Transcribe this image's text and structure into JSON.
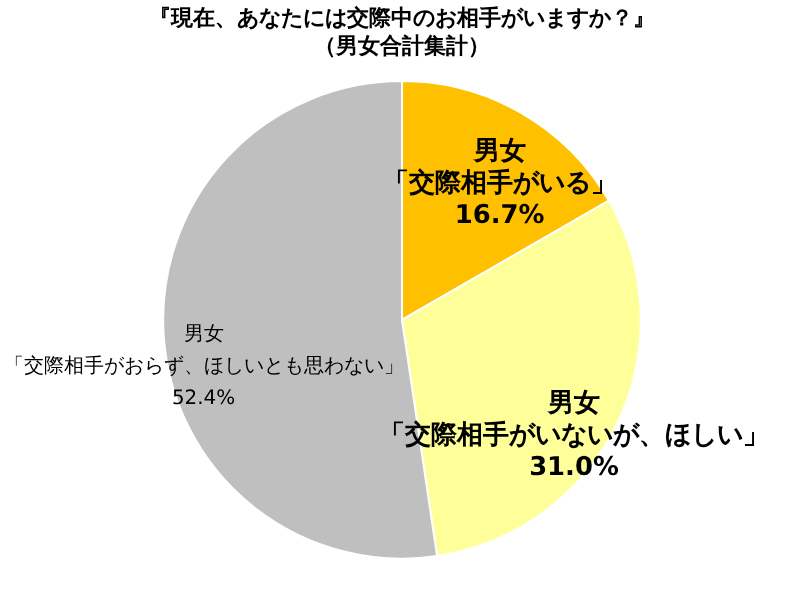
{
  "chart_data": {
    "type": "pie",
    "title": "『現在、あなたには交際中のお相手がいますか？』",
    "subtitle": "（男女合計集計）",
    "categories": [
      "男女「交際相手がいる」",
      "男女「交際相手がいないが、ほしい」",
      "男女「交際相手がおらず、ほしいとも思わない」"
    ],
    "values": [
      16.7,
      31.0,
      52.4
    ],
    "value_labels": [
      "16.7%",
      "31.0%",
      "52.4%"
    ],
    "colors": [
      "#ffc000",
      "#ffff99",
      "#bfbfbf"
    ],
    "legend": false
  }
}
